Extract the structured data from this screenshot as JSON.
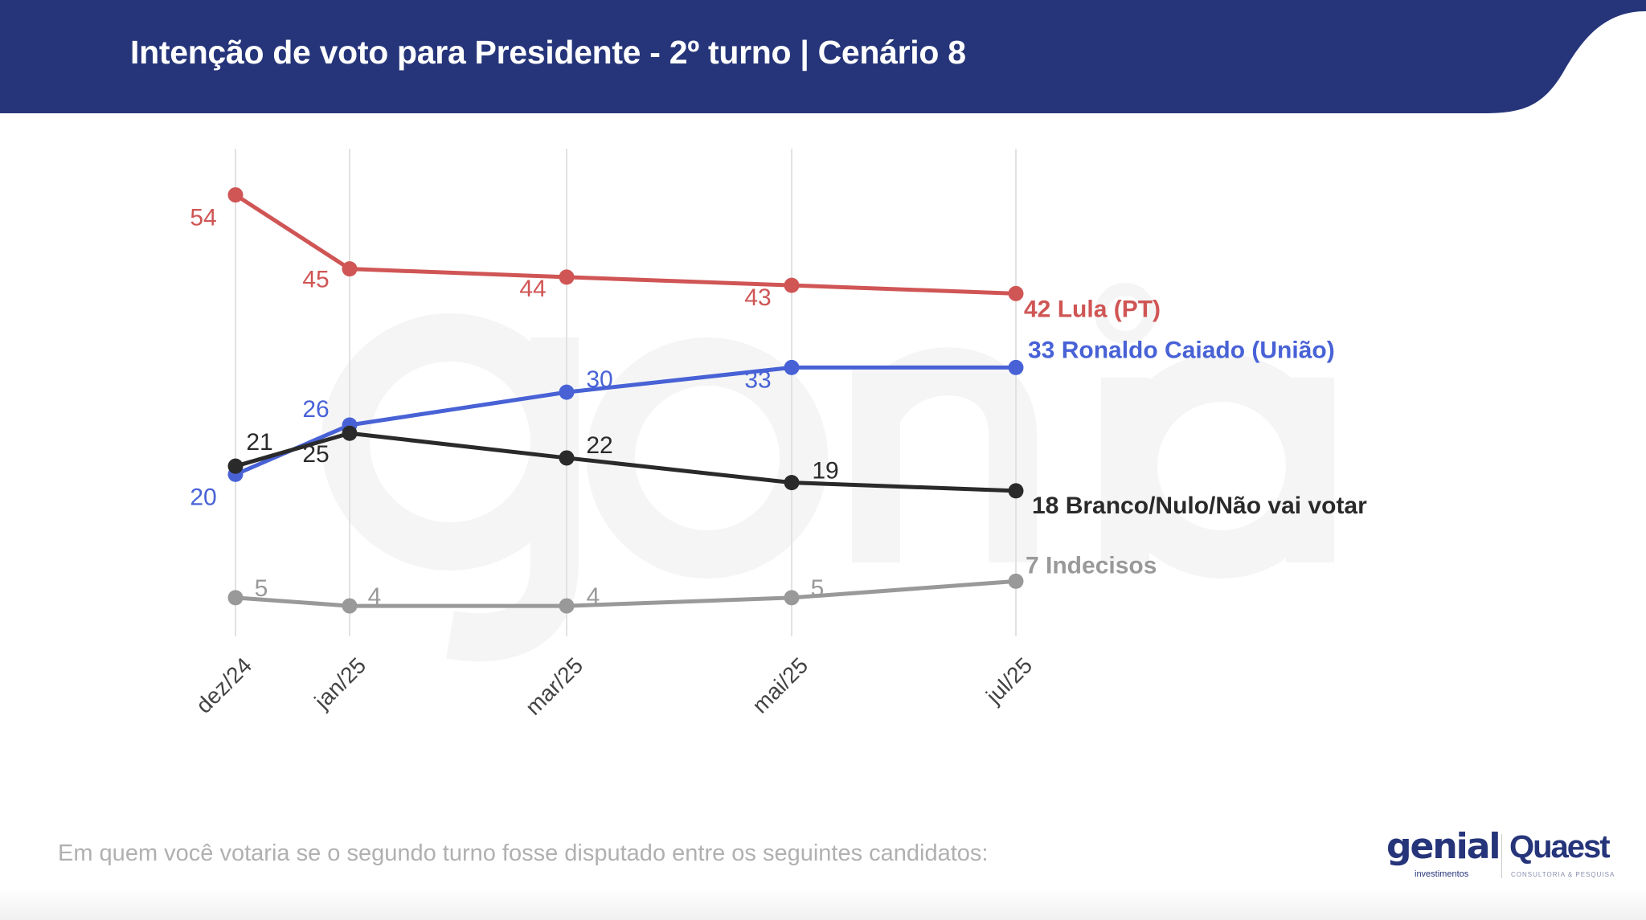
{
  "header": {
    "title": "Intenção de voto para Presidente - 2º turno | Cenário 8",
    "color": "#26357a"
  },
  "watermark": {
    "line1": "genial",
    "line2": "investimentos"
  },
  "footer": {
    "question": "Em quem você votaria se o segundo turno fosse disputado entre os seguintes candidatos:"
  },
  "logos": {
    "genial": "genial",
    "genial_sub": "investimentos",
    "quaest": "Quaest",
    "quaest_sub": "CONSULTORIA & PESQUISA"
  },
  "chart_data": {
    "type": "line",
    "title": "Intenção de voto para Presidente - 2º turno | Cenário 8",
    "categories": [
      "dez/24",
      "jan/25",
      "mar/25",
      "mai/25",
      "jul/25"
    ],
    "ylim": [
      0,
      60
    ],
    "grid": "vertical",
    "legend": "end-of-line labels",
    "series": [
      {
        "name": "Lula (PT)",
        "end_label": "42 Lula (PT)",
        "color": "#d05555",
        "values": [
          54,
          45,
          44,
          43,
          42
        ]
      },
      {
        "name": "Ronaldo Caiado (União)",
        "end_label": "33 Ronaldo Caiado (União)",
        "color": "#4862d6",
        "values": [
          20,
          26,
          30,
          33,
          33
        ]
      },
      {
        "name": "Branco/Nulo/Não vai votar",
        "end_label": "18 Branco/Nulo/Não vai votar",
        "color": "#2a2a2a",
        "values": [
          21,
          25,
          22,
          19,
          18
        ]
      },
      {
        "name": "Indecisos",
        "end_label": "7 Indecisos",
        "color": "#999999",
        "values": [
          5,
          4,
          4,
          5,
          7
        ]
      }
    ]
  }
}
